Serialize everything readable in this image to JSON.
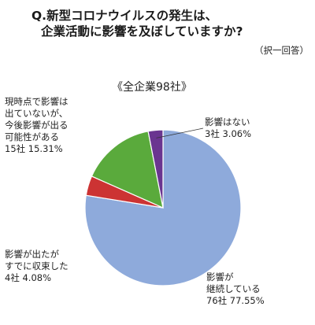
{
  "question": {
    "line1": "Q.新型コロナウイルスの発生は、",
    "line2": "企業活動に影響を及ぼしていますか?",
    "note": "（択一回答）"
  },
  "chart_data": {
    "type": "pie",
    "subtitle": "《全企業98社》",
    "slices": [
      {
        "name": "影響が継続している",
        "count": "76社",
        "percent_label": "77.55%",
        "value": 77.55,
        "color": "#8eaadb",
        "label_lines": [
          "影響が",
          "継続している",
          "76社 77.55%"
        ]
      },
      {
        "name": "影響が出たがすでに収束した",
        "count": "4社",
        "percent_label": "4.08%",
        "value": 4.08,
        "color": "#cc3333",
        "label_lines": [
          "影響が出たが",
          "すでに収束した",
          "4社 4.08%"
        ]
      },
      {
        "name": "現時点で影響は出ていないが、今後影響が出る可能性がある",
        "count": "15社",
        "percent_label": "15.31%",
        "value": 15.31,
        "color": "#5aaa3c",
        "label_lines": [
          "現時点で影響は",
          "出ていないが、",
          "今後影響が出る",
          "可能性がある",
          "15社 15.31%"
        ]
      },
      {
        "name": "影響はない",
        "count": "3社",
        "percent_label": "3.06%",
        "value": 3.06,
        "color": "#6a3590",
        "label_lines": [
          "影響はない",
          "3社 3.06%"
        ]
      }
    ]
  }
}
